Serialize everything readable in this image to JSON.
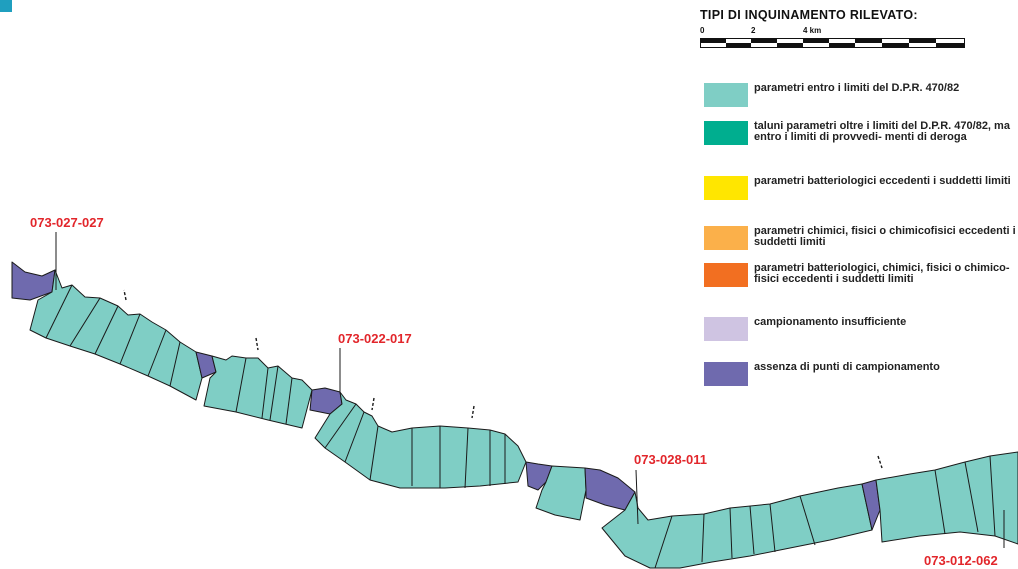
{
  "map": {
    "colors": {
      "coast_green": "#7fcec5",
      "coast_purple": "#6f6aae",
      "outline": "#1a1a1a",
      "label_red": "#e2262b"
    },
    "codes": [
      {
        "id": "code-1",
        "text": "073-027-027"
      },
      {
        "id": "code-2",
        "text": "073-022-017"
      },
      {
        "id": "code-3",
        "text": "073-028-011"
      },
      {
        "id": "code-4",
        "text": "073-012-062"
      }
    ]
  },
  "legend": {
    "title": "TIPI DI INQUINAMENTO RILEVATO:",
    "scale": {
      "ticks": [
        "0",
        "2",
        "4 km"
      ]
    },
    "items": [
      {
        "color": "#7fcec5",
        "label": "parametri entro i limiti del D.P.R. 470/82"
      },
      {
        "color": "#00ae8f",
        "label": "taluni parametri oltre i limiti del D.P.R. 470/82, ma entro i limiti di provvedi- menti di deroga"
      },
      {
        "color": "#ffe600",
        "label": "parametri batteriologici eccedenti i suddetti limiti"
      },
      {
        "color": "#fbb04a",
        "label": "parametri chimici, fisici o chimicofisici eccedenti i suddetti limiti"
      },
      {
        "color": "#f26f21",
        "label": "parametri batteriologici, chimici, fisici o chimico-fisici eccedenti i suddetti limiti"
      },
      {
        "color": "#cfc4e2",
        "label": "campionamento insufficiente"
      },
      {
        "color": "#6f6aae",
        "label": "assenza di punti di campionamento"
      }
    ]
  }
}
